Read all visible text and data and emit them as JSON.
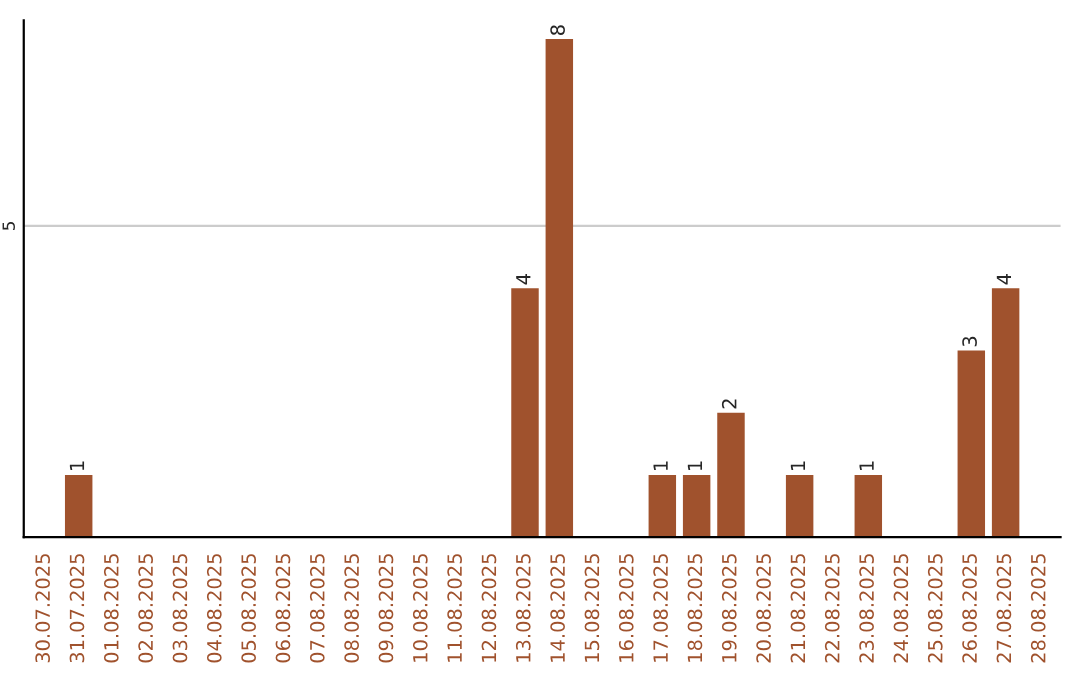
{
  "chart_data": {
    "type": "bar",
    "categories": [
      "30.07.2025",
      "31.07.2025",
      "01.08.2025",
      "02.08.2025",
      "03.08.2025",
      "04.08.2025",
      "05.08.2025",
      "06.08.2025",
      "07.08.2025",
      "08.08.2025",
      "09.08.2025",
      "10.08.2025",
      "11.08.2025",
      "12.08.2025",
      "13.08.2025",
      "14.08.2025",
      "15.08.2025",
      "16.08.2025",
      "17.08.2025",
      "18.08.2025",
      "19.08.2025",
      "20.08.2025",
      "21.08.2025",
      "22.08.2025",
      "23.08.2025",
      "24.08.2025",
      "25.08.2025",
      "26.08.2025",
      "27.08.2025",
      "28.08.2025"
    ],
    "values": [
      0,
      1,
      0,
      0,
      0,
      0,
      0,
      0,
      0,
      0,
      0,
      0,
      0,
      0,
      4,
      8,
      0,
      0,
      1,
      1,
      2,
      0,
      1,
      0,
      1,
      0,
      0,
      3,
      4,
      0
    ],
    "value_labels": [
      null,
      "1",
      null,
      null,
      null,
      null,
      null,
      null,
      null,
      null,
      null,
      null,
      null,
      null,
      "4",
      "8",
      null,
      null,
      "1",
      "1",
      "2",
      null,
      "1",
      null,
      "1",
      null,
      null,
      "3",
      "4",
      null
    ],
    "color": "#a0522d",
    "ylim": [
      0,
      8.3
    ],
    "yticks": [
      5
    ],
    "grid": "y"
  }
}
